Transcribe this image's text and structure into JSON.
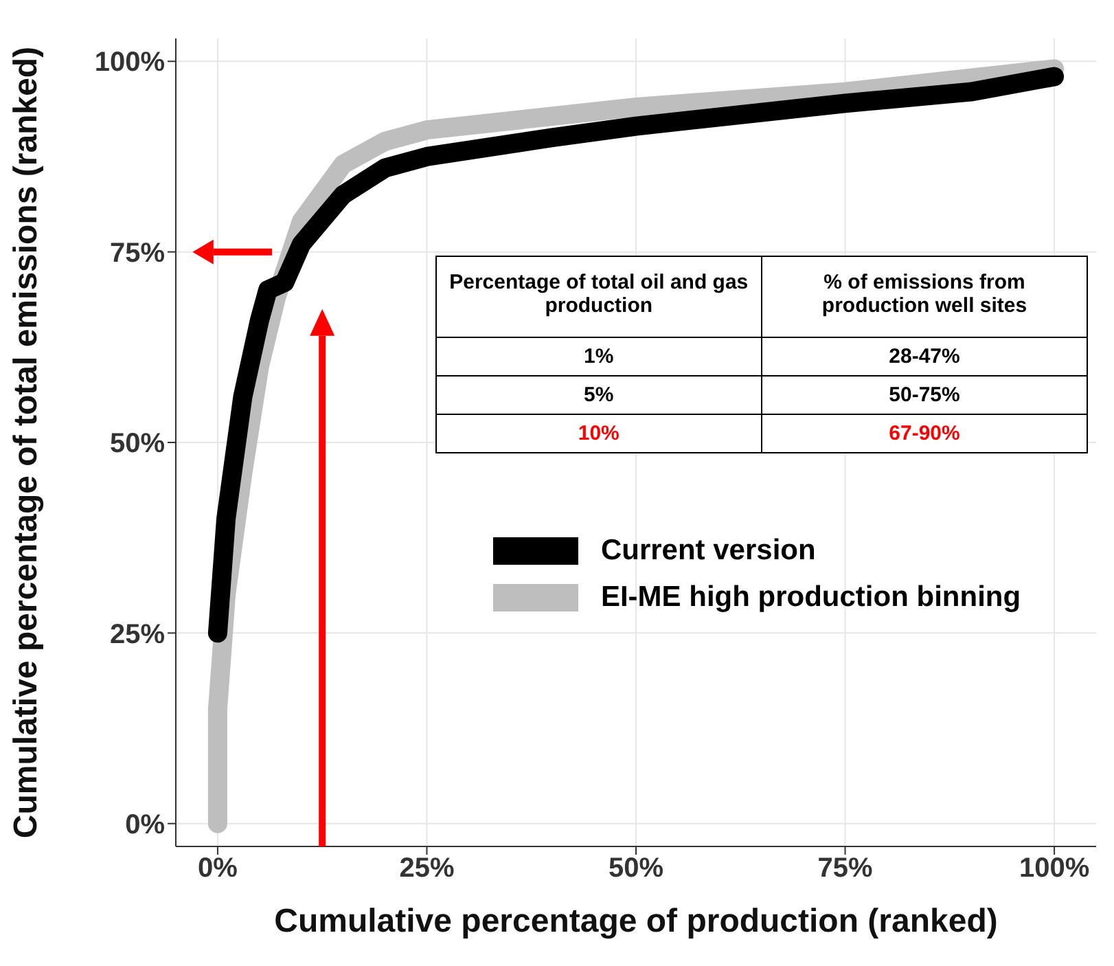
{
  "chart_data": {
    "type": "line",
    "xlabel": "Cumulative percentage of production (ranked)",
    "ylabel": "Cumulative percentage of total emissions (ranked)",
    "xlim": [
      -5,
      105
    ],
    "ylim": [
      -3,
      103
    ],
    "xticks": [
      {
        "value": 0,
        "label": "0%"
      },
      {
        "value": 25,
        "label": "25%"
      },
      {
        "value": 50,
        "label": "50%"
      },
      {
        "value": 75,
        "label": "75%"
      },
      {
        "value": 100,
        "label": "100%"
      }
    ],
    "yticks": [
      {
        "value": 0,
        "label": "0%"
      },
      {
        "value": 25,
        "label": "25%"
      },
      {
        "value": 50,
        "label": "50%"
      },
      {
        "value": 75,
        "label": "75%"
      },
      {
        "value": 100,
        "label": "100%"
      }
    ],
    "grid": true,
    "legend": "right",
    "marker": "none",
    "line_style": "solid",
    "series": [
      {
        "name": "EI-ME high production binning",
        "color": "#bebebe",
        "x": [
          0,
          0,
          1,
          3,
          5,
          7,
          10,
          15,
          20,
          25,
          50,
          75,
          100
        ],
        "values": [
          0,
          15,
          30,
          46,
          60,
          69,
          79,
          86.5,
          89.5,
          91,
          94,
          96,
          99
        ]
      },
      {
        "name": "Current version",
        "color": "#000000",
        "x": [
          0,
          1,
          3,
          5,
          6,
          8,
          10,
          15,
          20,
          25,
          40,
          50,
          75,
          90,
          100
        ],
        "values": [
          25,
          40,
          56,
          66,
          70,
          71,
          76,
          82.5,
          86,
          87.5,
          90,
          91.5,
          94.5,
          96,
          98
        ]
      }
    ],
    "annotations": [
      "Percentage of total oil and gas production",
      "% of emissions from production well sites",
      "1%",
      "28-47%",
      "5%",
      "50-75%",
      "10%",
      "67-90%"
    ]
  }
}
